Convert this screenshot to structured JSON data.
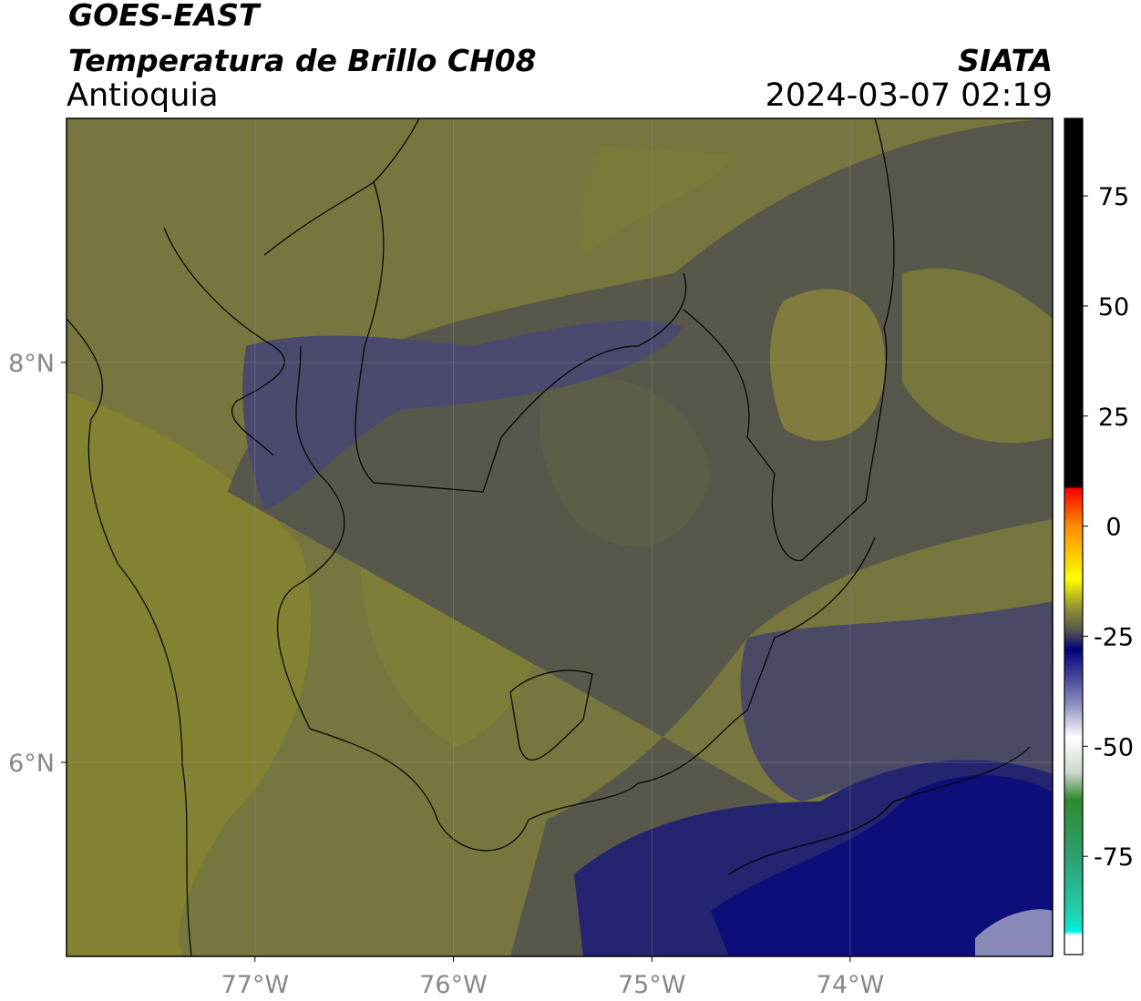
{
  "header": {
    "title": "GOES-EAST",
    "subtitle": "Temperatura de Brillo CH08",
    "region": "Antioquia",
    "agency": "SIATA",
    "datetime": "2024-03-07 02:19"
  },
  "map": {
    "xlim": [
      -77.95,
      -72.98
    ],
    "ylim": [
      5.03,
      9.22
    ],
    "xticks": [
      {
        "value": -77,
        "label": "77°W"
      },
      {
        "value": -76,
        "label": "76°W"
      },
      {
        "value": -75,
        "label": "75°W"
      },
      {
        "value": -74,
        "label": "74°W"
      }
    ],
    "yticks": [
      {
        "value": 8,
        "label": "8°N"
      },
      {
        "value": 6,
        "label": "6°N"
      }
    ],
    "grid": true
  },
  "colorbar": {
    "lim": [
      -97.3,
      92.6
    ],
    "ticks": [
      75,
      50,
      25,
      0,
      -25,
      -50,
      -75
    ],
    "colormap": [
      {
        "value": 92.6,
        "color": "#000000"
      },
      {
        "value": 9,
        "color": "#000000"
      },
      {
        "value": 8.5,
        "color": "#ff0000"
      },
      {
        "value": 0,
        "color": "#ff8c00"
      },
      {
        "value": -12,
        "color": "#ffff00"
      },
      {
        "value": -18,
        "color": "#9a9a30"
      },
      {
        "value": -24,
        "color": "#505050"
      },
      {
        "value": -28,
        "color": "#00007a"
      },
      {
        "value": -40,
        "color": "#8888bb"
      },
      {
        "value": -48,
        "color": "#ffffff"
      },
      {
        "value": -56,
        "color": "#ccd6cc"
      },
      {
        "value": -62,
        "color": "#2e8b2e"
      },
      {
        "value": -75,
        "color": "#2ea070"
      },
      {
        "value": -88,
        "color": "#20d0b0"
      },
      {
        "value": -92,
        "color": "#00f0e0"
      },
      {
        "value": -93,
        "color": "#ffffff"
      },
      {
        "value": -97.3,
        "color": "#ffffff"
      }
    ]
  }
}
